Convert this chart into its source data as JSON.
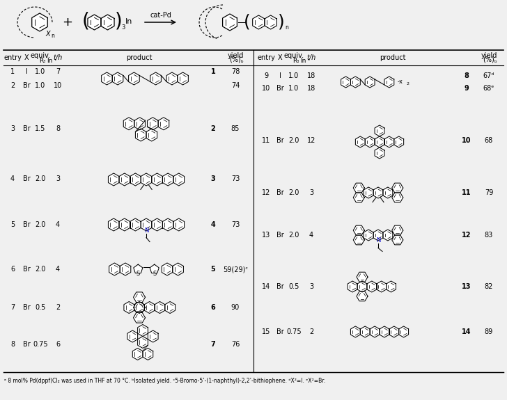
{
  "bg_color": "#f0f0f0",
  "table_bg": "#f0f0f0",
  "text_color": "#000000",
  "font_size": 7.0,
  "left_rows": [
    [
      "1",
      "I",
      "1.0",
      "7",
      "78",
      "1"
    ],
    [
      "2",
      "Br",
      "1.0",
      "10",
      "74",
      ""
    ],
    [
      "3",
      "Br",
      "1.5",
      "8",
      "85",
      "2"
    ],
    [
      "4",
      "Br",
      "2.0",
      "3",
      "73",
      "3"
    ],
    [
      "5",
      "Br",
      "2.0",
      "4",
      "73",
      "4"
    ],
    [
      "6",
      "Br",
      "2.0",
      "4",
      "59(29)ᶜ",
      "5"
    ],
    [
      "7",
      "Br",
      "0.5",
      "2",
      "90",
      "6"
    ],
    [
      "8",
      "Br",
      "0.75",
      "6",
      "76",
      "7"
    ]
  ],
  "right_rows": [
    [
      "9",
      "I",
      "1.0",
      "18",
      "67ᵈ",
      "8"
    ],
    [
      "10",
      "Br",
      "1.0",
      "18",
      "68ᵉ",
      "9"
    ],
    [
      "11",
      "Br",
      "2.0",
      "12",
      "68",
      "10"
    ],
    [
      "12",
      "Br",
      "2.0",
      "3",
      "79",
      "11"
    ],
    [
      "13",
      "Br",
      "2.0",
      "4",
      "83",
      "12"
    ],
    [
      "14",
      "Br",
      "0.5",
      "3",
      "82",
      "13"
    ],
    [
      "15",
      "Br",
      "0.75",
      "2",
      "89",
      "14"
    ]
  ],
  "footnote": "ᵃ 8 mol% Pd(dppf)Cl₂ was used in THF at 70 °C. ᵇIsolated yield. ᶜ5-Bromo-5’-(1-naphthyl)-2,2’-bithiophene. ᵈX²=I. ᵉX²=Br."
}
